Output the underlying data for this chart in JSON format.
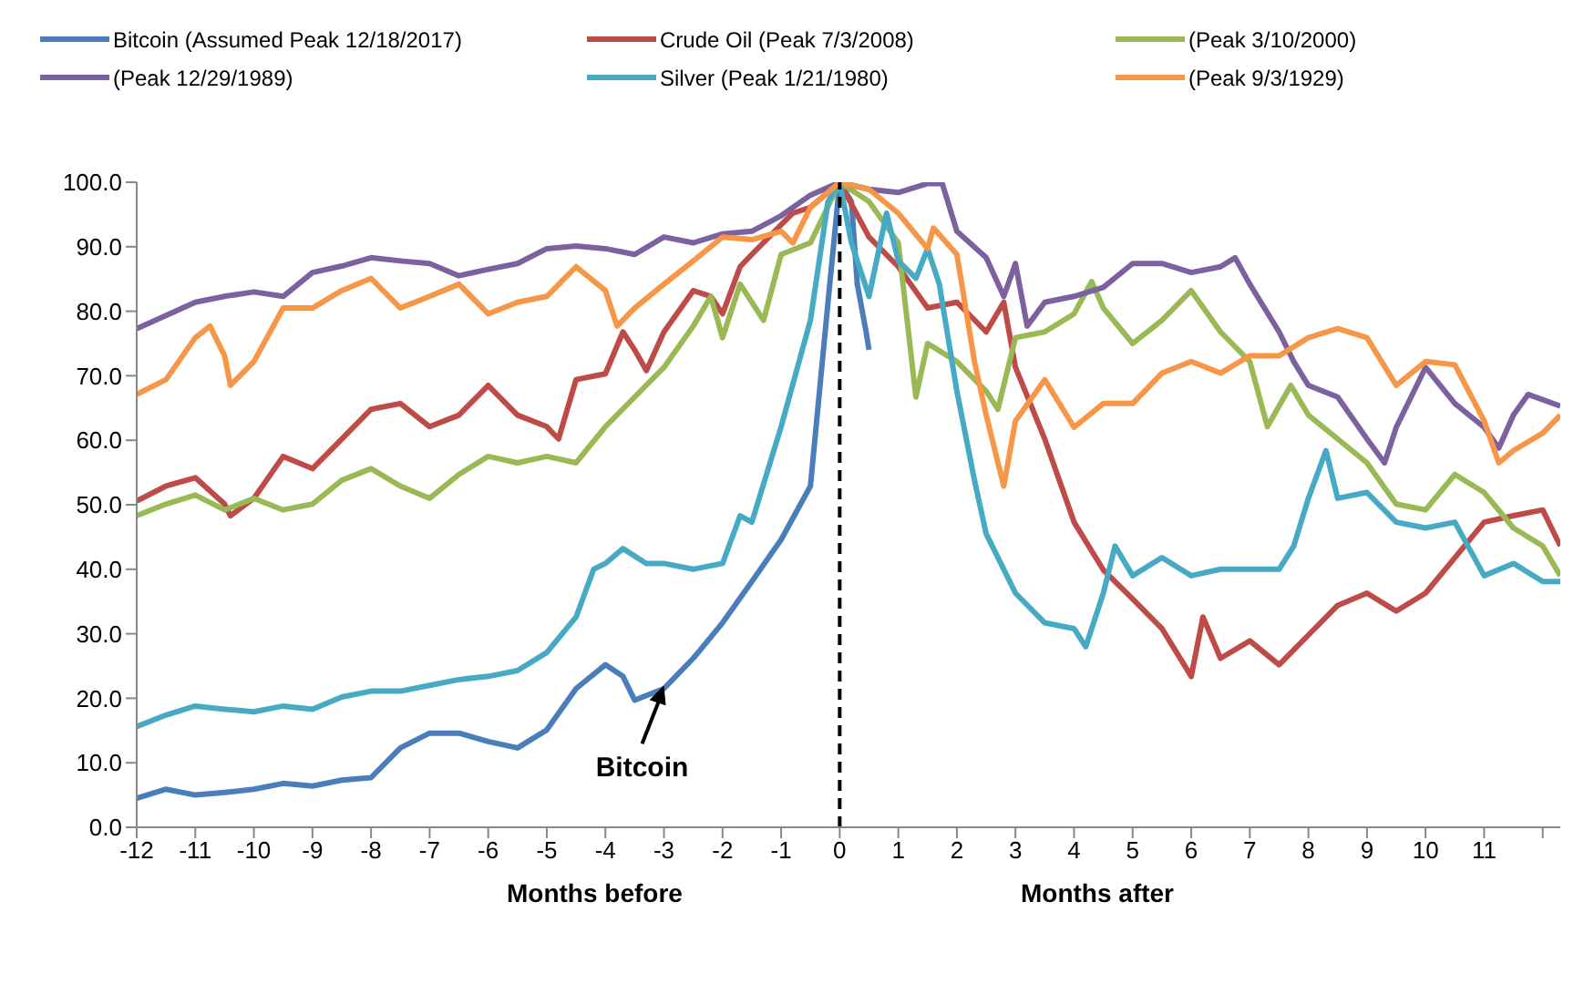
{
  "chart_data": {
    "type": "line",
    "xlim": [
      -12,
      12.3
    ],
    "ylim": [
      0,
      100
    ],
    "xticks": [
      -12,
      -11,
      -10,
      -9,
      -8,
      -7,
      -6,
      -5,
      -4,
      -3,
      -2,
      -1,
      0,
      1,
      2,
      3,
      4,
      5,
      6,
      7,
      8,
      9,
      10,
      11,
      {
        "value": 12,
        "label": null
      }
    ],
    "yticks": [
      {
        "value": 0,
        "label": "0.0"
      },
      {
        "value": 10,
        "label": "10.0"
      },
      {
        "value": 20,
        "label": "20.0"
      },
      {
        "value": 30,
        "label": "30.0"
      },
      {
        "value": 40,
        "label": "40.0"
      },
      {
        "value": 50,
        "label": "50.0"
      },
      {
        "value": 60,
        "label": "60.0"
      },
      {
        "value": 70,
        "label": "70.0"
      },
      {
        "value": 80,
        "label": "80.0"
      },
      {
        "value": 90,
        "label": "90.0"
      },
      {
        "value": 100,
        "label": "100.0"
      }
    ],
    "grid": false,
    "legend": "top",
    "marker": "none",
    "line_style": "solid",
    "ref_lines": [
      {
        "axis": "x",
        "value": 0,
        "label": null,
        "color": "#000000",
        "line_style": "dashed"
      }
    ],
    "annotations": [
      {
        "text": "Bitcoin",
        "x": -3,
        "y": 22
      },
      "Months before",
      "Months after"
    ],
    "series": [
      {
        "name": "Bitcoin (Assumed Peak 12/18/2017)",
        "color": "#4a7ebb",
        "x": [
          -12,
          -11.5,
          -11,
          -10.5,
          -10,
          -9.5,
          -9,
          -8.5,
          -8,
          -7.5,
          -7,
          -6.5,
          -6,
          -5.5,
          -5,
          -4.5,
          -4,
          -3.7,
          -3.5,
          -3,
          -2.8,
          -2.5,
          -2,
          -1.5,
          -1,
          -0.5,
          -0.2,
          0,
          0.2,
          0.3,
          0.45,
          0.5
        ],
        "values": [
          4.5,
          5.9,
          5,
          5.4,
          5.9,
          6.8,
          6.4,
          7.3,
          7.7,
          12.3,
          14.6,
          14.6,
          13.3,
          12.3,
          15.1,
          21.5,
          25.2,
          23.4,
          19.7,
          21.5,
          23.4,
          26.2,
          31.7,
          38.1,
          44.6,
          52.9,
          81.4,
          100,
          97,
          84.2,
          76.8,
          74
        ]
      },
      {
        "name": "Crude Oil (Peak 7/3/2008)",
        "color": "#be4b48",
        "x": [
          -12,
          -11.5,
          -11,
          -10.5,
          -10.4,
          -10,
          -9.5,
          -9,
          -8.5,
          -8,
          -7.5,
          -7,
          -6.5,
          -6,
          -5.5,
          -5,
          -4.8,
          -4.5,
          -4,
          -3.7,
          -3.5,
          -3.3,
          -3,
          -2.5,
          -2.2,
          -2,
          -1.7,
          -1.5,
          -1,
          -0.8,
          -0.5,
          0,
          0.5,
          1,
          1.5,
          2,
          2.5,
          2.8,
          3,
          3.5,
          4,
          4.5,
          5,
          5.5,
          6,
          6.2,
          6.5,
          7,
          7.5,
          8,
          8.5,
          9,
          9.5,
          10,
          10.5,
          11,
          11.5,
          12,
          12.3
        ],
        "values": [
          50.6,
          52.9,
          54.2,
          50.1,
          48.3,
          51,
          57.5,
          55.6,
          60.2,
          64.8,
          65.7,
          62.1,
          63.9,
          68.5,
          63.9,
          62.1,
          60.2,
          69.4,
          70.3,
          76.8,
          74,
          70.8,
          76.8,
          83.2,
          82.3,
          79.6,
          86.9,
          88.8,
          93.4,
          95.2,
          96.1,
          100,
          91.5,
          86.9,
          80.5,
          81.4,
          76.8,
          81.4,
          71.3,
          60.2,
          47.3,
          39.9,
          35.4,
          30.8,
          23.4,
          32.6,
          26.2,
          28.9,
          25.2,
          29.8,
          34.4,
          36.3,
          33.5,
          36.3,
          41.8,
          47.3,
          48.3,
          49.2,
          43.6
        ]
      },
      {
        "name": "(Peak 3/10/2000)",
        "color": "#98b954",
        "x": [
          -12,
          -11.5,
          -11,
          -10.5,
          -10,
          -9.5,
          -9,
          -8.5,
          -8,
          -7.5,
          -7,
          -6.5,
          -6,
          -5.5,
          -5,
          -4.5,
          -4,
          -3.5,
          -3,
          -2.5,
          -2.2,
          -2,
          -1.7,
          -1.3,
          -1,
          -0.5,
          0,
          0.5,
          1,
          1.3,
          1.5,
          2,
          2.5,
          2.7,
          3,
          3.5,
          4,
          4.3,
          4.5,
          5,
          5.5,
          6,
          6.5,
          7,
          7.3,
          7.7,
          8,
          8.5,
          9,
          9.5,
          10,
          10.5,
          11,
          11.5,
          12,
          12.3
        ],
        "values": [
          48.3,
          50.1,
          51.5,
          49.2,
          51,
          49.2,
          50.1,
          53.8,
          55.6,
          52.9,
          51,
          54.7,
          57.5,
          56.5,
          57.5,
          56.5,
          62.1,
          66.7,
          71.3,
          77.7,
          82.3,
          75.9,
          84.2,
          78.6,
          88.8,
          90.6,
          100,
          97,
          90.6,
          66.7,
          75,
          72.2,
          67.6,
          64.8,
          75.9,
          76.8,
          79.6,
          84.6,
          80.5,
          75,
          78.6,
          83.2,
          76.8,
          72.2,
          62.1,
          68.5,
          63.9,
          60.2,
          56.5,
          50.1,
          49.2,
          54.7,
          51.9,
          46.4,
          43.6,
          39
        ]
      },
      {
        "name": "(Peak 12/29/1989)",
        "color": "#7d60a0",
        "x": [
          -12,
          -11,
          -10.5,
          -10,
          -9.5,
          -9,
          -8.5,
          -8,
          -7.5,
          -7,
          -6.5,
          -6,
          -5.5,
          -5,
          -4.5,
          -4,
          -3.5,
          -3,
          -2.5,
          -2,
          -1.5,
          -1,
          -0.5,
          0,
          0.5,
          1,
          1.5,
          1.75,
          2,
          2.5,
          2.8,
          3,
          3.2,
          3.5,
          4,
          4.5,
          5,
          5.5,
          6,
          6.5,
          6.75,
          7,
          7.5,
          7.75,
          8,
          8.5,
          9,
          9.3,
          9.5,
          10,
          10.5,
          11,
          11.25,
          11.5,
          11.75,
          12.3
        ],
        "values": [
          77.3,
          81.4,
          82.3,
          83,
          82.3,
          86,
          87,
          88.3,
          87.8,
          87.4,
          85.5,
          86.5,
          87.4,
          89.7,
          90.1,
          89.7,
          88.8,
          91.5,
          90.6,
          92,
          92.4,
          94.8,
          98,
          100,
          98.9,
          98.4,
          99.8,
          99.8,
          92.4,
          88.3,
          82.3,
          87.4,
          77.7,
          81.4,
          82.3,
          83.7,
          87.4,
          87.4,
          86,
          86.9,
          88.3,
          84.2,
          76.8,
          72.2,
          68.5,
          66.7,
          60.2,
          56.5,
          62,
          71.3,
          65.7,
          62,
          58.8,
          63.9,
          67.1,
          65.3
        ]
      },
      {
        "name": "Silver (Peak 1/21/1980)",
        "color": "#46aac5",
        "x": [
          -12,
          -11.5,
          -11,
          -10.5,
          -10,
          -9.5,
          -9,
          -8.5,
          -8,
          -7.5,
          -7,
          -6.5,
          -6,
          -5.5,
          -5,
          -4.5,
          -4.2,
          -4,
          -3.7,
          -3.3,
          -3,
          -2.5,
          -2,
          -1.7,
          -1.5,
          -1,
          -0.5,
          -0.2,
          0,
          0.2,
          0.5,
          0.8,
          1,
          1.3,
          1.5,
          1.7,
          2,
          2.3,
          2.5,
          2.8,
          3,
          3.5,
          4,
          4.2,
          4.5,
          4.7,
          5,
          5.5,
          6,
          6.5,
          7,
          7.5,
          7.75,
          8,
          8.3,
          8.5,
          9,
          9.5,
          10,
          10.5,
          11,
          11.5,
          12,
          12.3
        ],
        "values": [
          15.6,
          17.4,
          18.8,
          18.3,
          17.9,
          18.8,
          18.3,
          20.2,
          21.1,
          21.1,
          22,
          22.9,
          23.4,
          24.3,
          27.1,
          32.6,
          40,
          40.9,
          43.2,
          40.9,
          40.9,
          40,
          40.9,
          48.3,
          47.3,
          62.1,
          78.6,
          97,
          100,
          90.6,
          82.3,
          95.2,
          87.8,
          85.1,
          89.7,
          84.2,
          67.6,
          53.8,
          45.5,
          40,
          36.3,
          31.7,
          30.8,
          28,
          36.3,
          43.6,
          39,
          41.8,
          39,
          40,
          40,
          40,
          43.6,
          51,
          58.4,
          51,
          51.9,
          47.3,
          46.4,
          47.3,
          39,
          40.9,
          38.1,
          38.1
        ]
      },
      {
        "name": "(Peak 9/3/1929)",
        "color": "#f79646",
        "x": [
          -12,
          -11.5,
          -11,
          -10.75,
          -10.5,
          -10.4,
          -10,
          -9.5,
          -9,
          -8.5,
          -8,
          -7.5,
          -7,
          -6.5,
          -6,
          -5.5,
          -5,
          -4.5,
          -4,
          -3.8,
          -3.5,
          -3,
          -2.5,
          -2,
          -1.5,
          -1,
          -0.8,
          -0.5,
          0,
          0.5,
          1,
          1.5,
          1.6,
          2,
          2.3,
          2.5,
          2.8,
          3,
          3.5,
          4,
          4.5,
          5,
          5.5,
          6,
          6.5,
          7,
          7.5,
          8,
          8.5,
          9,
          9.5,
          10,
          10.5,
          11,
          11.25,
          11.5,
          12,
          12.3
        ],
        "values": [
          67.1,
          69.4,
          75.9,
          77.7,
          73.1,
          68.5,
          72.2,
          80.5,
          80.5,
          83.2,
          85.1,
          80.5,
          82.3,
          84.2,
          79.6,
          81.4,
          82.3,
          86.9,
          83.2,
          77.7,
          80.5,
          84.2,
          87.8,
          91.5,
          91.1,
          92.4,
          90.6,
          96.1,
          100,
          98.9,
          95.2,
          89.7,
          92.9,
          88.8,
          72.2,
          63.9,
          52.9,
          63,
          69.4,
          62,
          65.7,
          65.7,
          70.4,
          72.2,
          70.4,
          73.1,
          73.1,
          75.9,
          77.3,
          75.9,
          68.5,
          72.2,
          71.7,
          63,
          56.5,
          58.4,
          61.1,
          63.9
        ]
      }
    ]
  }
}
